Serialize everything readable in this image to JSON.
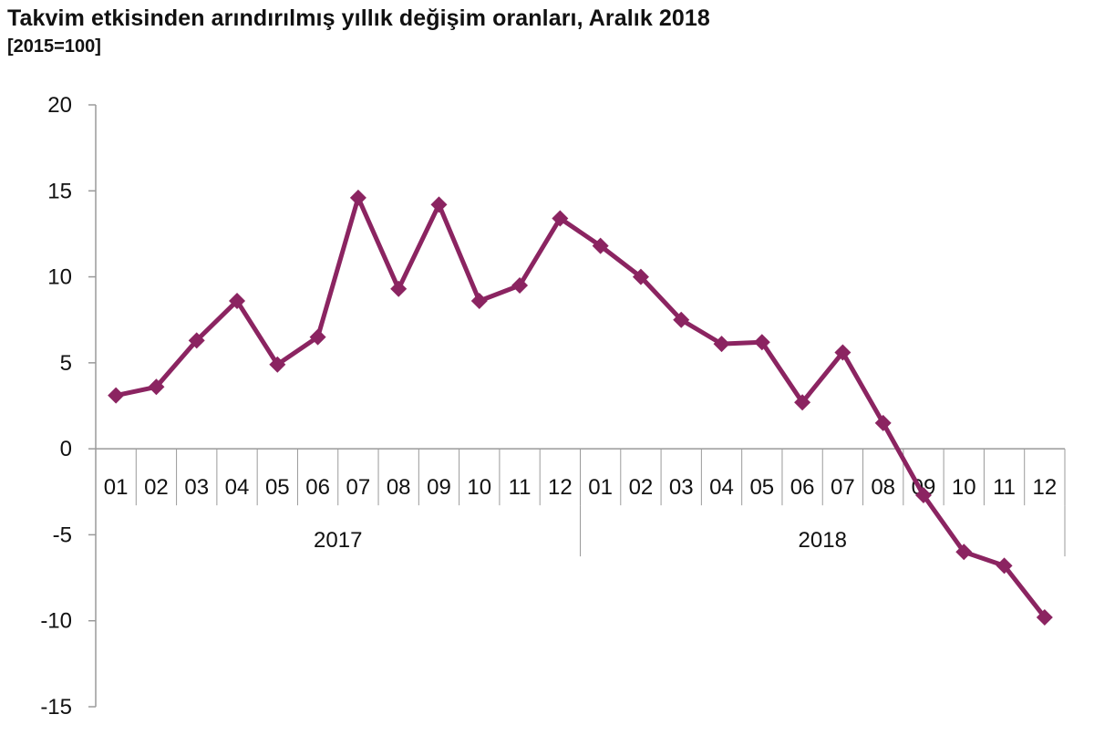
{
  "title": "Takvim etkisinden arındırılmış yıllık değişim oranları, Aralık 2018",
  "subtitle": "[2015=100]",
  "chart_data": {
    "type": "line",
    "title": "Takvim etkisinden arındırılmış yıllık değişim oranları, Aralık 2018",
    "subtitle": "[2015=100]",
    "categories": [
      "01",
      "02",
      "03",
      "04",
      "05",
      "06",
      "07",
      "08",
      "09",
      "10",
      "11",
      "12",
      "01",
      "02",
      "03",
      "04",
      "05",
      "06",
      "07",
      "08",
      "09",
      "10",
      "11",
      "12"
    ],
    "groups": [
      {
        "label": "2017",
        "start": 0,
        "count": 12
      },
      {
        "label": "2018",
        "start": 12,
        "count": 12
      }
    ],
    "series": [
      {
        "color": "#8b2461",
        "values": [
          3.1,
          3.6,
          6.3,
          8.6,
          4.9,
          6.5,
          14.6,
          9.3,
          14.2,
          8.6,
          9.5,
          13.4,
          11.8,
          10.0,
          7.5,
          6.1,
          6.2,
          2.7,
          5.6,
          1.5,
          -2.7,
          -6.0,
          -6.8,
          -9.8
        ]
      }
    ],
    "ylim": [
      -15,
      20
    ],
    "yticks": [
      20,
      15,
      10,
      5,
      0,
      -5,
      -10,
      -15
    ],
    "ytick_labels": [
      "20",
      "15",
      "10",
      "5",
      "0",
      "-5",
      "-10",
      "-15"
    ],
    "grid": false,
    "legend": "none"
  }
}
